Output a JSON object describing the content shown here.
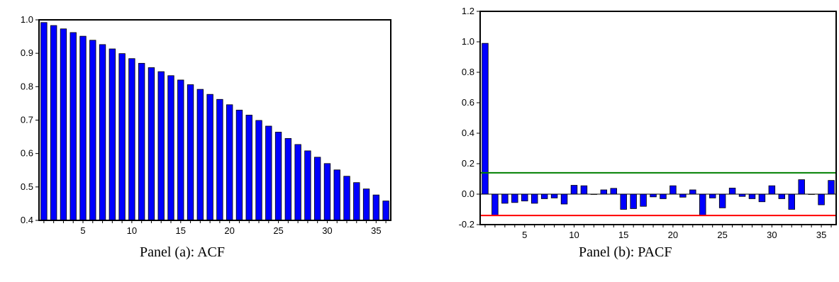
{
  "chart_data": [
    {
      "type": "bar",
      "caption": "Panel (a): ACF",
      "x": [
        1,
        2,
        3,
        4,
        5,
        6,
        7,
        8,
        9,
        10,
        11,
        12,
        13,
        14,
        15,
        16,
        17,
        18,
        19,
        20,
        21,
        22,
        23,
        24,
        25,
        26,
        27,
        28,
        29,
        30,
        31,
        32,
        33,
        34,
        35,
        36
      ],
      "values": [
        0.992,
        0.983,
        0.973,
        0.962,
        0.951,
        0.939,
        0.926,
        0.913,
        0.899,
        0.884,
        0.87,
        0.857,
        0.845,
        0.833,
        0.82,
        0.806,
        0.792,
        0.777,
        0.762,
        0.746,
        0.73,
        0.715,
        0.699,
        0.682,
        0.664,
        0.645,
        0.627,
        0.608,
        0.589,
        0.57,
        0.551,
        0.532,
        0.513,
        0.494,
        0.476,
        0.458
      ],
      "ylim": [
        0.4,
        1.0
      ],
      "yticks": [
        0.4,
        0.5,
        0.6,
        0.7,
        0.8,
        0.9,
        1.0
      ],
      "ytick_labels": [
        "0.4",
        "0.5",
        "0.6",
        "0.7",
        "0.8",
        "0.9",
        "1.0"
      ],
      "xticks": [
        5,
        10,
        15,
        20,
        25,
        30,
        35
      ],
      "xtick_labels": [
        "5",
        "10",
        "15",
        "20",
        "25",
        "30",
        "35"
      ],
      "bar_color": "#0000ff",
      "grid": false
    },
    {
      "type": "bar",
      "caption": "Panel (b): PACF",
      "x": [
        1,
        2,
        3,
        4,
        5,
        6,
        7,
        8,
        9,
        10,
        11,
        12,
        13,
        14,
        15,
        16,
        17,
        18,
        19,
        20,
        21,
        22,
        23,
        24,
        25,
        26,
        27,
        28,
        29,
        30,
        31,
        32,
        33,
        34,
        35,
        36
      ],
      "values": [
        0.99,
        -0.14,
        -0.06,
        -0.055,
        -0.045,
        -0.06,
        -0.03,
        -0.025,
        -0.065,
        0.058,
        0.055,
        0.0,
        0.028,
        0.038,
        -0.1,
        -0.095,
        -0.08,
        -0.018,
        -0.03,
        0.055,
        -0.02,
        0.028,
        -0.14,
        -0.025,
        -0.09,
        0.04,
        -0.015,
        -0.03,
        -0.05,
        0.055,
        -0.03,
        -0.1,
        0.095,
        0.0,
        -0.07,
        0.09
      ],
      "ylim": [
        -0.2,
        1.2
      ],
      "yticks": [
        -0.2,
        0.0,
        0.2,
        0.4,
        0.6,
        0.8,
        1.0,
        1.2
      ],
      "ytick_labels": [
        "-0.2",
        "0.0",
        "0.2",
        "0.4",
        "0.6",
        "0.8",
        "1.0",
        "1.2"
      ],
      "xticks": [
        5,
        10,
        15,
        20,
        25,
        30,
        35
      ],
      "xtick_labels": [
        "5",
        "10",
        "15",
        "20",
        "25",
        "30",
        "35"
      ],
      "bar_color": "#0000ff",
      "reference_lines": [
        {
          "value": 0.14,
          "color": "#008000"
        },
        {
          "value": -0.14,
          "color": "#ff0000"
        }
      ],
      "grid": false
    }
  ]
}
